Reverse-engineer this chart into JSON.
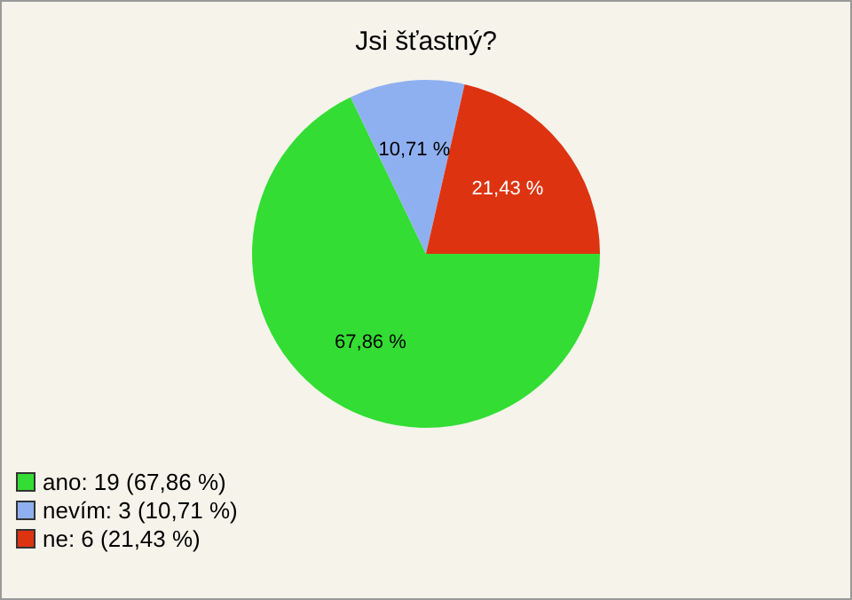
{
  "chart_data": {
    "type": "pie",
    "title": "Jsi šťastný?",
    "categories": [
      "ano: 19 (67,86 %)",
      "nevím: 3 (10,71 %)",
      "ne: 6 (21,43 %)"
    ],
    "values": [
      67.86,
      10.71,
      21.43
    ],
    "colors": [
      "#33dd33",
      "#8fb0f0",
      "#dd3311"
    ],
    "value_labels": [
      "67,86 %",
      "10,71 %",
      "21,43 %"
    ],
    "legend": "bottom left"
  }
}
